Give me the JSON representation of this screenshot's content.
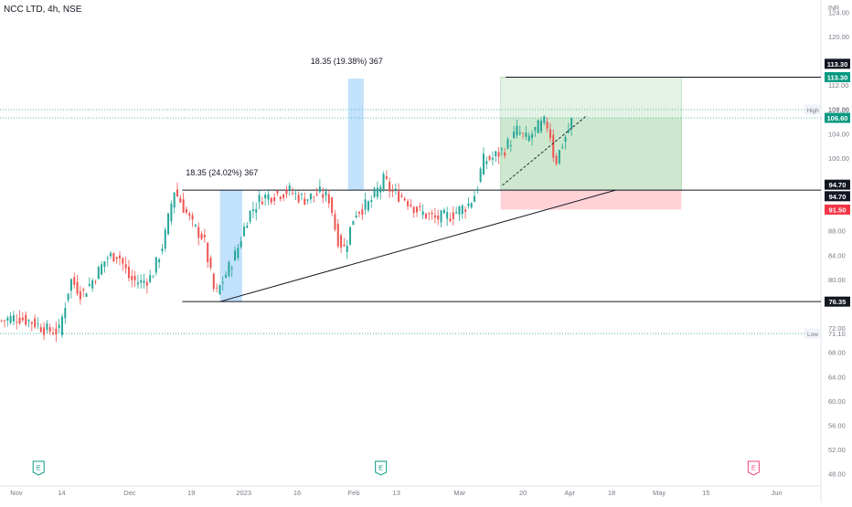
{
  "header": {
    "symbol_title": "NCC LTD, 4h, NSE"
  },
  "colors": {
    "up": "#26a69a",
    "down": "#ef5350",
    "wick": "#4c525e",
    "target_zone": "#c8e6c9",
    "target_zone_edge": "#81c784",
    "stop_zone": "#ffcdd2",
    "measure_box": "#bbdefb",
    "level_line": "#131722",
    "dotted_line": "#26a69a",
    "label_dark": "#131722",
    "label_green": "#089981",
    "label_red": "#f23645",
    "axis_text": "#787b86",
    "grid_border": "#e0e3eb"
  },
  "chart_data": {
    "type": "candlestick",
    "title": "NCC LTD, 4h, NSE",
    "y_axis": {
      "unit_label": "INR",
      "range": [
        46,
        126
      ],
      "ticks": [
        48.0,
        52.0,
        56.0,
        60.0,
        64.0,
        68.0,
        72.0,
        76.0,
        80.0,
        84.0,
        88.0,
        92.0,
        96.0,
        100.0,
        104.0,
        108.0,
        112.0,
        116.0,
        120.0,
        124.0
      ],
      "tick_labels": [
        "48.00",
        "52.00",
        "56.00",
        "60.00",
        "64.00",
        "68.00",
        "72.00",
        "76.00",
        "80.00",
        "84.00",
        "88.00",
        "92.00",
        "96.00",
        "100.00",
        "104.00",
        "108.00",
        "112.00",
        "116.00",
        "120.00",
        "124.00"
      ]
    },
    "x_axis": {
      "labels": [
        {
          "text": "Nov",
          "at": 0.02
        },
        {
          "text": "14",
          "at": 0.075
        },
        {
          "text": "Dec",
          "at": 0.158
        },
        {
          "text": "19",
          "at": 0.233
        },
        {
          "text": "2023",
          "at": 0.297
        },
        {
          "text": "16",
          "at": 0.362
        },
        {
          "text": "Feb",
          "at": 0.431
        },
        {
          "text": "13",
          "at": 0.483
        },
        {
          "text": "Mar",
          "at": 0.56
        },
        {
          "text": "20",
          "at": 0.637
        },
        {
          "text": "Apr",
          "at": 0.694
        },
        {
          "text": "18",
          "at": 0.745
        },
        {
          "text": "May",
          "at": 0.803
        },
        {
          "text": "15",
          "at": 0.86
        },
        {
          "text": "Jun",
          "at": 0.946
        }
      ],
      "earnings_marks": [
        {
          "text": "E",
          "at": 0.047,
          "kind": "past"
        },
        {
          "text": "E",
          "at": 0.464,
          "kind": "past"
        },
        {
          "text": "E",
          "at": 0.918,
          "kind": "upcoming"
        }
      ]
    },
    "candles_anchors": [
      [
        0.0,
        73.2
      ],
      [
        0.02,
        73.8
      ],
      [
        0.04,
        73.0
      ],
      [
        0.058,
        71.6
      ],
      [
        0.072,
        71.5
      ],
      [
        0.086,
        80.0
      ],
      [
        0.1,
        77.5
      ],
      [
        0.116,
        80.5
      ],
      [
        0.13,
        83.6
      ],
      [
        0.144,
        84.2
      ],
      [
        0.158,
        80.0
      ],
      [
        0.172,
        79.5
      ],
      [
        0.185,
        80.5
      ],
      [
        0.2,
        86.5
      ],
      [
        0.212,
        94.8
      ],
      [
        0.22,
        92.8
      ],
      [
        0.235,
        88.8
      ],
      [
        0.248,
        86.8
      ],
      [
        0.262,
        77.2
      ],
      [
        0.275,
        80.8
      ],
      [
        0.288,
        84.5
      ],
      [
        0.302,
        90.5
      ],
      [
        0.318,
        93.5
      ],
      [
        0.335,
        94.0
      ],
      [
        0.352,
        94.6
      ],
      [
        0.37,
        93.2
      ],
      [
        0.39,
        94.2
      ],
      [
        0.402,
        93.2
      ],
      [
        0.41,
        87.0
      ],
      [
        0.42,
        85.0
      ],
      [
        0.432,
        91.0
      ],
      [
        0.45,
        92.5
      ],
      [
        0.468,
        96.5
      ],
      [
        0.476,
        94.5
      ],
      [
        0.492,
        93.5
      ],
      [
        0.51,
        91.2
      ],
      [
        0.53,
        90.0
      ],
      [
        0.548,
        90.5
      ],
      [
        0.572,
        92.5
      ],
      [
        0.58,
        94.5
      ],
      [
        0.588,
        99.5
      ],
      [
        0.6,
        100.0
      ],
      [
        0.615,
        101.5
      ],
      [
        0.63,
        104.5
      ],
      [
        0.642,
        103.0
      ],
      [
        0.655,
        105.0
      ],
      [
        0.665,
        106.0
      ],
      [
        0.67,
        104.0
      ],
      [
        0.676,
        99.0
      ],
      [
        0.684,
        102.0
      ],
      [
        0.692,
        104.5
      ],
      [
        0.698,
        106.6
      ]
    ],
    "candles_end_at": 0.698,
    "annotations": {
      "measure_boxes": [
        {
          "label": "18.35 (24.02%) 367",
          "x_start": 0.268,
          "x_end": 0.295,
          "y_low": 76.35,
          "y_high": 94.7
        },
        {
          "label": "18.35 (19.38%) 367",
          "x_start": 0.424,
          "x_end": 0.443,
          "y_low": 94.7,
          "y_high": 113.05
        }
      ],
      "levels": [
        {
          "label": "113.30",
          "value": 113.3,
          "x_start": 0.616,
          "line": "solid",
          "label_style": "dark"
        },
        {
          "label": "94.70",
          "value": 94.7,
          "x_start": 0.222,
          "line": "solid",
          "label_style": "dark"
        },
        {
          "label": "76.35",
          "value": 76.35,
          "x_start": 0.222,
          "line": "solid",
          "label_style": "dark"
        }
      ],
      "trendline": {
        "from": {
          "at": 0.268,
          "value": 76.35
        },
        "to": {
          "at": 0.75,
          "value": 94.7
        }
      },
      "high_line": {
        "tag": "High",
        "label": "107.95",
        "value": 107.95
      },
      "low_line": {
        "tag": "Low",
        "label": "71.10",
        "value": 71.1
      },
      "last_price": {
        "label": "106.60",
        "value": 106.6
      },
      "position": {
        "entry": 94.7,
        "entry_label": "94.70",
        "target": 113.3,
        "target_label": "113.30",
        "stop": 91.5,
        "stop_label": "91.50",
        "x_start": 0.61,
        "x_end": 0.83
      },
      "channel_dashed": {
        "from": {
          "at": 0.612,
          "value": 95.5
        },
        "to": {
          "at": 0.715,
          "value": 107.0
        }
      }
    }
  }
}
